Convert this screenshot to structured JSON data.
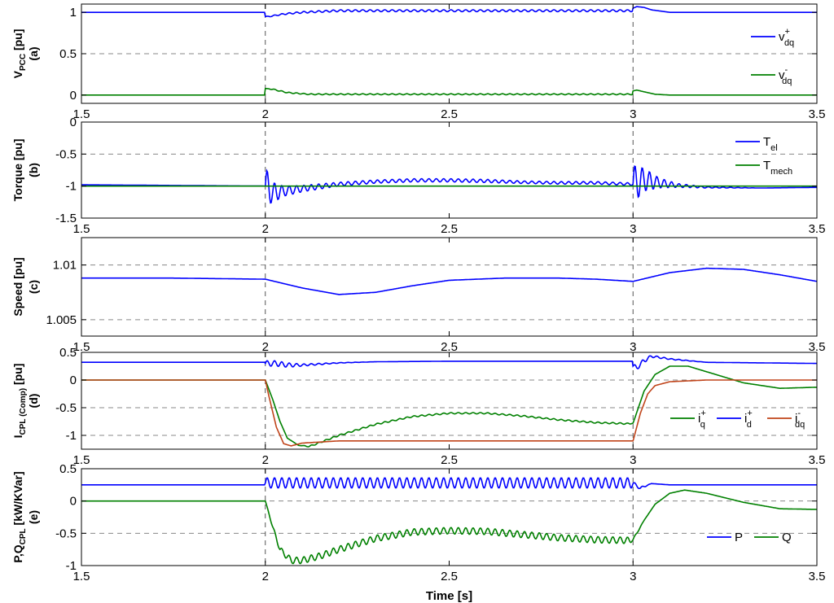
{
  "xlabel": "Time [s]",
  "colors": {
    "blue": "#0000ff",
    "green": "#008000",
    "red": "#c0441a",
    "grid": "#888888"
  },
  "chart_data": [
    {
      "type": "line",
      "id": "a",
      "ylabel": {
        "main": "V",
        "sub": "PCC",
        "unit": " [pu]",
        "tag": "(a)"
      },
      "xlim": [
        1.5,
        3.5
      ],
      "ylim": [
        -0.1,
        1.1
      ],
      "yticks": [
        0,
        0.5,
        1
      ],
      "ytick_labels": [
        "0",
        "0.5",
        "1"
      ],
      "xticks": [
        1.5,
        2,
        2.5,
        3,
        3.5
      ],
      "xtick_labels": [
        "1.5",
        "2",
        "2.5",
        "3",
        "3.5"
      ],
      "hgrid": [
        0.5
      ],
      "vgrid": [
        2,
        3
      ],
      "legend": {
        "position": "right"
      },
      "series": [
        {
          "name": "v",
          "sub": "dq",
          "sup": "+",
          "color": "blue",
          "x": [
            1.5,
            1.999,
            2.0,
            2.01,
            2.05,
            2.1,
            2.2,
            2.5,
            2.9,
            2.999,
            3.0,
            3.01,
            3.03,
            3.05,
            3.1,
            3.5
          ],
          "y": [
            1.0,
            1.0,
            0.95,
            0.95,
            0.98,
            1.0,
            1.02,
            1.02,
            1.02,
            1.02,
            1.05,
            1.07,
            1.06,
            1.03,
            1.0,
            1.0
          ],
          "osc": [
            0,
            0,
            0,
            0.006,
            0.008,
            0.01,
            0.012,
            0.012,
            0.012,
            0.012,
            0,
            0,
            0,
            0,
            0,
            0
          ]
        },
        {
          "name": "v",
          "sub": "dq",
          "sup": "-",
          "color": "green",
          "x": [
            1.5,
            1.999,
            2.0,
            2.02,
            2.06,
            2.12,
            2.5,
            2.999,
            3.0,
            3.01,
            3.03,
            3.06,
            3.1,
            3.5
          ],
          "y": [
            0.0,
            0.0,
            0.08,
            0.07,
            0.03,
            0.01,
            0.01,
            0.01,
            0.05,
            0.06,
            0.04,
            0.01,
            0.0,
            0.0
          ],
          "osc": [
            0,
            0,
            0,
            0.005,
            0.006,
            0.006,
            0.006,
            0.006,
            0,
            0,
            0,
            0,
            0,
            0
          ]
        }
      ]
    },
    {
      "type": "line",
      "id": "b",
      "ylabel": {
        "main": "Torque [pu]",
        "sub": "",
        "unit": "",
        "tag": "(b)"
      },
      "xlim": [
        1.5,
        3.5
      ],
      "ylim": [
        -1.5,
        0
      ],
      "yticks": [
        -1.5,
        -1,
        -0.5,
        0
      ],
      "ytick_labels": [
        "-1.5",
        "-1",
        "-0.5",
        "0"
      ],
      "xticks": [
        1.5,
        2,
        2.5,
        3,
        3.5
      ],
      "xtick_labels": [
        "1.5",
        "2",
        "2.5",
        "3",
        "3.5"
      ],
      "hgrid": [
        -1,
        -0.5
      ],
      "vgrid": [
        2,
        3
      ],
      "legend": {
        "position": "top-right"
      },
      "series": [
        {
          "name": "T",
          "sub": "el",
          "sup": "",
          "color": "blue",
          "x": [
            1.5,
            1.999,
            2.0,
            2.02,
            2.05,
            2.1,
            2.2,
            2.3,
            2.4,
            2.5,
            2.6,
            2.7,
            2.8,
            2.9,
            2.999,
            3.0,
            3.03,
            3.07,
            3.12,
            3.2,
            3.35,
            3.5
          ],
          "y": [
            -0.98,
            -1.0,
            -1.0,
            -1.1,
            -1.08,
            -1.04,
            -0.97,
            -0.93,
            -0.91,
            -0.91,
            -0.92,
            -0.94,
            -0.95,
            -0.95,
            -0.97,
            -0.97,
            -0.9,
            -0.95,
            -0.99,
            -1.02,
            -1.03,
            -1.02
          ],
          "osc": [
            0,
            0,
            0.3,
            0.16,
            0.08,
            0.05,
            0.03,
            0.025,
            0.025,
            0.025,
            0.025,
            0.02,
            0.02,
            0.02,
            0.02,
            0.3,
            0.18,
            0.08,
            0.03,
            0.01,
            0,
            0
          ]
        },
        {
          "name": "T",
          "sub": "mech",
          "sup": "",
          "color": "green",
          "x": [
            1.5,
            3.5
          ],
          "y": [
            -1.0,
            -1.0
          ],
          "osc": [
            0,
            0
          ]
        }
      ]
    },
    {
      "type": "line",
      "id": "c",
      "ylabel": {
        "main": "Speed [pu]",
        "sub": "",
        "unit": "",
        "tag": "(c)"
      },
      "xlim": [
        1.5,
        3.5
      ],
      "ylim": [
        1.0035,
        1.0125
      ],
      "yticks": [
        1.005,
        1.01
      ],
      "ytick_labels": [
        "1.005",
        "1.01"
      ],
      "xticks": [
        1.5,
        2,
        2.5,
        3,
        3.5
      ],
      "xtick_labels": [
        "1.5",
        "2",
        "2.5",
        "3",
        "3.5"
      ],
      "hgrid": [
        1.005,
        1.01
      ],
      "vgrid": [
        2,
        3
      ],
      "legend": null,
      "series": [
        {
          "name": "",
          "sub": "",
          "sup": "",
          "color": "blue",
          "x": [
            1.5,
            1.75,
            2.0,
            2.1,
            2.2,
            2.3,
            2.4,
            2.5,
            2.65,
            2.8,
            2.9,
            3.0,
            3.1,
            3.2,
            3.3,
            3.4,
            3.5
          ],
          "y": [
            1.0088,
            1.0088,
            1.0087,
            1.0079,
            1.0073,
            1.0075,
            1.0081,
            1.0086,
            1.0088,
            1.0088,
            1.0087,
            1.0085,
            1.0093,
            1.0097,
            1.0096,
            1.0091,
            1.0085
          ],
          "osc": [
            0,
            0,
            0,
            0,
            0,
            0,
            0,
            0,
            0,
            0,
            0,
            0,
            0,
            0,
            0,
            0,
            0
          ]
        }
      ]
    },
    {
      "type": "line",
      "id": "d",
      "ylabel": {
        "main": "I",
        "sub": "CPL (Comp)",
        "unit": " [pu]",
        "tag": "(d)"
      },
      "xlim": [
        1.5,
        3.5
      ],
      "ylim": [
        -1.25,
        0.5
      ],
      "yticks": [
        -1,
        -0.5,
        0,
        0.5
      ],
      "ytick_labels": [
        "-1",
        "-0.5",
        "0",
        "0.5"
      ],
      "xticks": [
        1.5,
        2,
        2.5,
        3,
        3.5
      ],
      "xtick_labels": [
        "1.5",
        "2",
        "2.5",
        "3",
        "3.5"
      ],
      "hgrid": [
        -1,
        -0.5,
        0
      ],
      "vgrid": [
        2,
        3
      ],
      "legend": {
        "position": "bottom-right"
      },
      "series": [
        {
          "name": "i",
          "sub": "q",
          "sup": "+",
          "color": "green",
          "x": [
            1.5,
            2.0,
            2.02,
            2.04,
            2.06,
            2.09,
            2.12,
            2.2,
            2.3,
            2.4,
            2.5,
            2.6,
            2.7,
            2.8,
            2.9,
            2.99,
            3.0,
            3.03,
            3.06,
            3.1,
            3.15,
            3.2,
            3.3,
            3.4,
            3.5
          ],
          "y": [
            0,
            0,
            -0.35,
            -0.75,
            -1.05,
            -1.18,
            -1.2,
            -1.0,
            -0.8,
            -0.66,
            -0.6,
            -0.6,
            -0.65,
            -0.72,
            -0.77,
            -0.79,
            -0.78,
            -0.2,
            0.1,
            0.25,
            0.25,
            0.15,
            -0.05,
            -0.15,
            -0.13
          ],
          "osc": [
            0,
            0,
            0,
            0,
            0,
            0,
            0.012,
            0.012,
            0.012,
            0.012,
            0.012,
            0.012,
            0.012,
            0.012,
            0.012,
            0.012,
            0,
            0,
            0,
            0,
            0,
            0,
            0,
            0,
            0
          ]
        },
        {
          "name": "i",
          "sub": "d",
          "sup": "+",
          "color": "blue",
          "x": [
            1.5,
            1.999,
            2.0,
            2.03,
            2.06,
            2.1,
            2.2,
            2.3,
            2.5,
            2.9,
            2.999,
            3.0,
            3.01,
            3.03,
            3.05,
            3.1,
            3.2,
            3.5
          ],
          "y": [
            0.32,
            0.32,
            0.3,
            0.3,
            0.27,
            0.27,
            0.31,
            0.33,
            0.34,
            0.34,
            0.34,
            0.25,
            0.22,
            0.35,
            0.43,
            0.38,
            0.32,
            0.3
          ],
          "osc": [
            0,
            0,
            0.05,
            0.05,
            0.04,
            0.02,
            0.005,
            0,
            0,
            0,
            0,
            0.04,
            0.04,
            0.04,
            0.02,
            0.01,
            0,
            0
          ]
        },
        {
          "name": "i",
          "sub": "dq",
          "sup": "-",
          "color": "red",
          "x": [
            1.5,
            2.0,
            2.01,
            2.03,
            2.05,
            2.07,
            2.1,
            2.2,
            2.5,
            2.99,
            3.0,
            3.02,
            3.04,
            3.06,
            3.1,
            3.2,
            3.5
          ],
          "y": [
            0,
            0,
            -0.3,
            -0.85,
            -1.15,
            -1.19,
            -1.14,
            -1.1,
            -1.1,
            -1.1,
            -1.1,
            -0.6,
            -0.25,
            -0.1,
            -0.03,
            0,
            0
          ],
          "osc": [
            0,
            0,
            0,
            0,
            0,
            0,
            0,
            0,
            0,
            0,
            0,
            0,
            0,
            0,
            0,
            0,
            0
          ]
        }
      ]
    },
    {
      "type": "line",
      "id": "e",
      "ylabel": {
        "main": "P,Q",
        "sub": "CPL",
        "unit": " [kW/KVar]",
        "tag": "(e)"
      },
      "xlim": [
        1.5,
        3.5
      ],
      "ylim": [
        -1,
        0.5
      ],
      "yticks": [
        -1,
        -0.5,
        0,
        0.5
      ],
      "ytick_labels": [
        "-1",
        "-0.5",
        "0",
        "0.5"
      ],
      "xticks": [
        1.5,
        2,
        2.5,
        3,
        3.5
      ],
      "xtick_labels": [
        "1.5",
        "2",
        "2.5",
        "3",
        "3.5"
      ],
      "hgrid": [
        -0.5,
        0
      ],
      "vgrid": [
        2,
        3
      ],
      "legend": {
        "position": "bottom-right"
      },
      "series": [
        {
          "name": "P",
          "sub": "",
          "sup": "",
          "color": "blue",
          "x": [
            1.5,
            1.999,
            2.0,
            2.5,
            2.999,
            3.0,
            3.02,
            3.05,
            3.1,
            3.5
          ],
          "y": [
            0.25,
            0.25,
            0.28,
            0.28,
            0.28,
            0.27,
            0.2,
            0.27,
            0.25,
            0.25
          ],
          "osc": [
            0,
            0,
            0.08,
            0.08,
            0.08,
            0.03,
            0.02,
            0,
            0,
            0
          ]
        },
        {
          "name": "Q",
          "sub": "",
          "sup": "",
          "color": "green",
          "x": [
            1.5,
            2.0,
            2.02,
            2.04,
            2.07,
            2.1,
            2.15,
            2.2,
            2.3,
            2.4,
            2.5,
            2.6,
            2.7,
            2.8,
            2.9,
            2.99,
            3.0,
            3.03,
            3.06,
            3.1,
            3.14,
            3.2,
            3.3,
            3.4,
            3.5
          ],
          "y": [
            0,
            0,
            -0.4,
            -0.75,
            -0.92,
            -0.92,
            -0.85,
            -0.75,
            -0.58,
            -0.48,
            -0.46,
            -0.47,
            -0.52,
            -0.57,
            -0.6,
            -0.61,
            -0.6,
            -0.3,
            -0.05,
            0.12,
            0.17,
            0.12,
            -0.02,
            -0.12,
            -0.13
          ],
          "osc": [
            0,
            0,
            0.02,
            0.04,
            0.05,
            0.05,
            0.05,
            0.05,
            0.05,
            0.05,
            0.05,
            0.05,
            0.05,
            0.05,
            0.05,
            0.05,
            0.02,
            0,
            0,
            0,
            0,
            0,
            0,
            0,
            0
          ]
        }
      ]
    }
  ]
}
